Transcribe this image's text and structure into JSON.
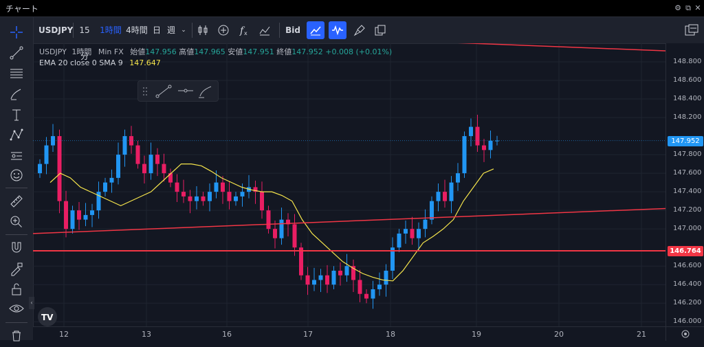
{
  "window": {
    "title": "チャート"
  },
  "toolbar": {
    "symbol": "USDJPY",
    "intervals": [
      "15分",
      "1時間",
      "4時間",
      "日",
      "週"
    ],
    "active_interval": "1時間",
    "bid_label": "Bid"
  },
  "legend": {
    "symbol": "USDJPY",
    "interval": "1時間",
    "source": "Min FX",
    "open_label": "始値",
    "open": "147.956",
    "high_label": "高値",
    "high": "147.965",
    "low_label": "安値",
    "low": "147.951",
    "close_label": "終値",
    "close": "147.952",
    "change": "+0.008 (+0.01%)",
    "indicator": "EMA 20 close 0 SMA 9",
    "indicator_value": "147.647"
  },
  "price_axis": {
    "ticks": [
      "148.800",
      "148.600",
      "148.400",
      "148.200",
      "147.800",
      "147.600",
      "147.400",
      "147.200",
      "147.000",
      "146.600",
      "146.400",
      "146.200",
      "146.000"
    ],
    "current_price": "147.952",
    "hline_price": "146.764"
  },
  "time_axis": {
    "labels": [
      "12",
      "13",
      "16",
      "17",
      "18",
      "19",
      "20",
      "21"
    ]
  },
  "colors": {
    "up": "#26a69a",
    "down": "#ef5350",
    "up_candle": "#2196f3",
    "down_candle": "#e91e63",
    "ema": "#f7e64c",
    "trendline": "#f23645",
    "accent": "#2962ff"
  },
  "chart_data": {
    "type": "candlestick",
    "symbol": "USDJPY",
    "interval": "1時間",
    "ylim": [
      145.95,
      149.0
    ],
    "price_line": 147.952,
    "horizontal_line": 146.764,
    "closes": [
      147.7,
      147.9,
      148.0,
      147.3,
      147.0,
      147.2,
      147.1,
      147.15,
      147.2,
      147.4,
      147.5,
      147.55,
      147.8,
      148.0,
      147.9,
      147.7,
      147.6,
      147.8,
      147.7,
      147.6,
      147.5,
      147.4,
      147.35,
      147.3,
      147.35,
      147.3,
      147.4,
      147.5,
      147.4,
      147.3,
      147.35,
      147.4,
      147.45,
      147.4,
      147.2,
      147.0,
      146.9,
      147.1,
      147.05,
      146.8,
      146.5,
      146.4,
      146.45,
      146.5,
      146.4,
      146.55,
      146.5,
      146.6,
      146.45,
      146.3,
      146.25,
      146.35,
      146.4,
      146.55,
      146.8,
      146.95,
      147.0,
      146.9,
      147.0,
      147.1,
      147.3,
      147.4,
      147.3,
      147.5,
      147.6,
      148.0,
      148.1,
      147.9,
      147.85,
      147.95,
      147.952
    ],
    "ema": [
      147.5,
      147.6,
      147.55,
      147.45,
      147.4,
      147.35,
      147.3,
      147.25,
      147.3,
      147.35,
      147.4,
      147.5,
      147.6,
      147.7,
      147.7,
      147.68,
      147.62,
      147.55,
      147.5,
      147.45,
      147.42,
      147.4,
      147.4,
      147.36,
      147.3,
      147.1,
      146.95,
      146.85,
      146.75,
      146.65,
      146.58,
      146.52,
      146.48,
      146.45,
      146.44,
      146.55,
      146.7,
      146.85,
      146.92,
      147.0,
      147.1,
      147.3,
      147.45,
      147.6,
      147.647
    ],
    "trendlines": [
      {
        "from": 148.83,
        "to": 148.83,
        "label": ""
      },
      {
        "from": 146.95,
        "to": 147.22,
        "label": ""
      }
    ]
  }
}
